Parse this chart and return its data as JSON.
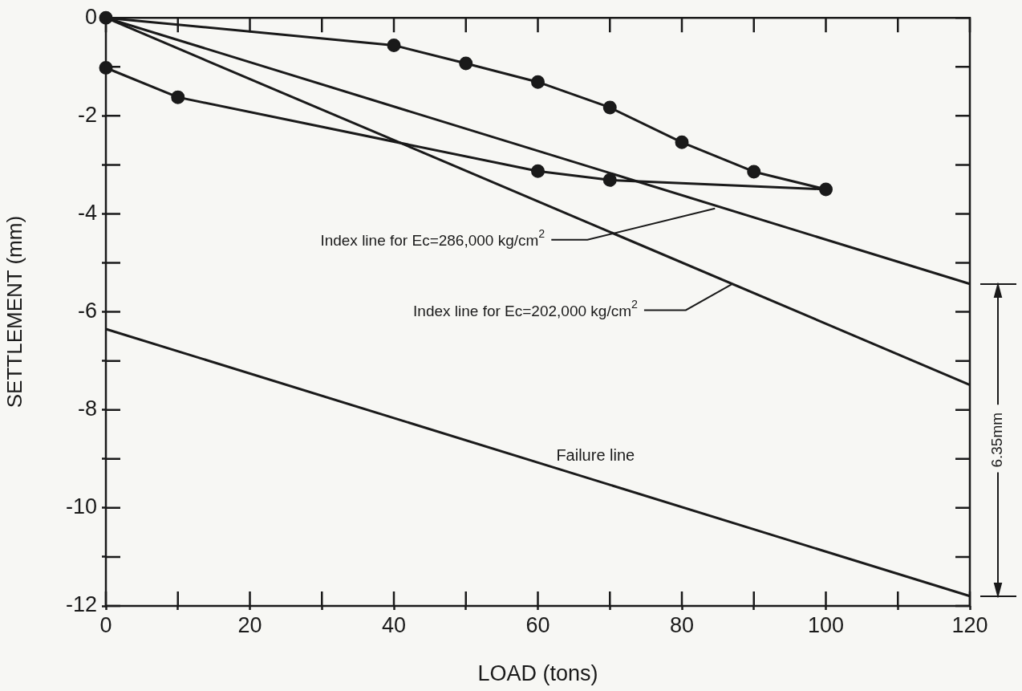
{
  "chart_data": {
    "type": "line",
    "xlabel": "LOAD (tons)",
    "ylabel": "SETTLEMENT (mm)",
    "xlim": [
      0,
      120
    ],
    "ylim": [
      -12,
      0
    ],
    "xticks": [
      0,
      {
        "value": 10,
        "label": null
      },
      20,
      {
        "value": 30,
        "label": null
      },
      40,
      {
        "value": 50,
        "label": null
      },
      60,
      {
        "value": 70,
        "label": null
      },
      80,
      {
        "value": 90,
        "label": null
      },
      100,
      {
        "value": 110,
        "label": null
      },
      120
    ],
    "yticks": [
      0,
      {
        "value": -1,
        "label": null
      },
      -2,
      {
        "value": -3,
        "label": null
      },
      -4,
      {
        "value": -5,
        "label": null
      },
      -6,
      {
        "value": -7,
        "label": null
      },
      -8,
      {
        "value": -9,
        "label": null
      },
      -10,
      {
        "value": -11,
        "label": null
      },
      -12
    ],
    "series": [
      {
        "color": "#1a1a1a",
        "marker": "circle",
        "x": [
          0,
          40,
          50,
          60,
          70,
          80,
          90,
          100,
          70,
          60,
          10,
          0
        ],
        "values": [
          0,
          -0.56,
          -0.93,
          -1.31,
          -1.83,
          -2.54,
          -3.14,
          -3.5,
          -3.31,
          -3.13,
          -1.62,
          -1.02
        ]
      },
      {
        "color": "#1a1a1a",
        "marker": "none",
        "x": [
          0,
          120
        ],
        "values": [
          0,
          -5.43
        ]
      },
      {
        "color": "#1a1a1a",
        "marker": "none",
        "x": [
          0,
          120
        ],
        "values": [
          0,
          -7.49
        ]
      },
      {
        "color": "#1a1a1a",
        "marker": "none",
        "x": [
          0,
          120
        ],
        "values": [
          -6.35,
          -11.8
        ]
      }
    ],
    "annotations": [
      {
        "text": "Index line for Ec=286,000 kg/cm$^{2}$",
        "x": 84.6,
        "y": -3.89
      },
      {
        "text": "Index line for Ec=202,000 kg/cm$^{2}$",
        "x": 86.9,
        "y": -5.44
      },
      {
        "text": "Failure line",
        "x": 68,
        "y": -9.44
      },
      "6.35mm"
    ],
    "grid": false,
    "legend": false
  }
}
